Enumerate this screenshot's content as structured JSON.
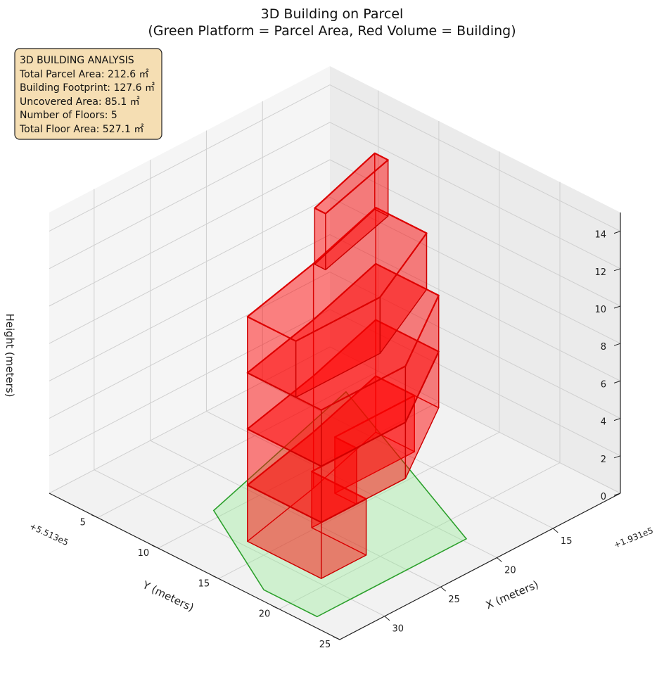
{
  "chart_data": {
    "type": "3d-polygons",
    "title": "3D Building on Parcel",
    "subtitle": "(Green Platform = Parcel Area, Red Volume = Building)",
    "xlabel": "X (meters)",
    "ylabel": "Y (meters)",
    "zlabel": "Height (meters)",
    "x_offset_label": "+1.931e5",
    "y_offset_label": "+5.513e5",
    "x_ticks": [
      "15",
      "20",
      "25",
      "30"
    ],
    "y_ticks": [
      "5",
      "10",
      "15",
      "20",
      "25"
    ],
    "z_ticks": [
      "0",
      "2",
      "4",
      "6",
      "8",
      "10",
      "12",
      "14"
    ],
    "xlim": [
      9,
      34
    ],
    "ylim": [
      1,
      25
    ],
    "zlim": [
      0,
      15
    ],
    "grid": true,
    "colors": {
      "parcel_fill": "#90ee90",
      "parcel_edge": "#2ca02c",
      "building_fill": "#ff0000",
      "building_edge": "#cc0000",
      "info_box_fill": "#f5deb3"
    },
    "parcel": {
      "name": "Parcel Area",
      "polygon": [
        [
          12.2,
          5.3
        ],
        [
          28.3,
          9.3
        ],
        [
          33.0,
          17.8
        ],
        [
          33.0,
          22.2
        ],
        [
          30.8,
          22.2
        ],
        [
          19.7,
          22.2
        ]
      ]
    },
    "floors": [
      {
        "level": 1,
        "z_bottom": 0.0,
        "z_top": 3.0,
        "footprint": [
          [
            14.4,
            9.8
          ],
          [
            22.0,
            11.7
          ],
          [
            29.5,
            13.2
          ],
          [
            29.5,
            19.3
          ],
          [
            25.5,
            19.3
          ],
          [
            25.5,
            14.8
          ],
          [
            21.5,
            14.8
          ],
          [
            21.5,
            13.0
          ],
          [
            14.4,
            13.0
          ]
        ]
      },
      {
        "level": 2,
        "z_bottom": 3.0,
        "z_top": 6.0,
        "footprint": [
          [
            14.4,
            9.8
          ],
          [
            22.0,
            11.7
          ],
          [
            29.5,
            13.2
          ],
          [
            29.5,
            19.3
          ],
          [
            22.0,
            19.3
          ],
          [
            14.4,
            15.0
          ]
        ]
      },
      {
        "level": 3,
        "z_bottom": 6.0,
        "z_top": 9.0,
        "footprint": [
          [
            14.4,
            9.8
          ],
          [
            22.0,
            11.7
          ],
          [
            29.5,
            13.2
          ],
          [
            29.5,
            19.3
          ],
          [
            22.0,
            19.3
          ],
          [
            14.4,
            15.0
          ]
        ]
      },
      {
        "level": 4,
        "z_bottom": 9.0,
        "z_top": 12.0,
        "footprint": [
          [
            14.4,
            9.8
          ],
          [
            22.0,
            11.7
          ],
          [
            29.5,
            13.2
          ],
          [
            29.5,
            17.2
          ],
          [
            22.0,
            17.2
          ],
          [
            14.4,
            14.0
          ]
        ]
      },
      {
        "level": 5,
        "z_bottom": 12.0,
        "z_top": 15.0,
        "footprint": [
          [
            14.6,
            9.9
          ],
          [
            22.0,
            11.8
          ],
          [
            22.0,
            12.7
          ],
          [
            14.6,
            11.0
          ]
        ]
      }
    ],
    "info_box": {
      "heading": "3D BUILDING ANALYSIS",
      "lines": [
        "Total Parcel Area: 212.6 ㎡",
        "Building Footprint: 127.6 ㎡",
        "Uncovered Area: 85.1 ㎡",
        "Number of Floors: 5",
        "Total Floor Area: 527.1 ㎡"
      ]
    }
  }
}
